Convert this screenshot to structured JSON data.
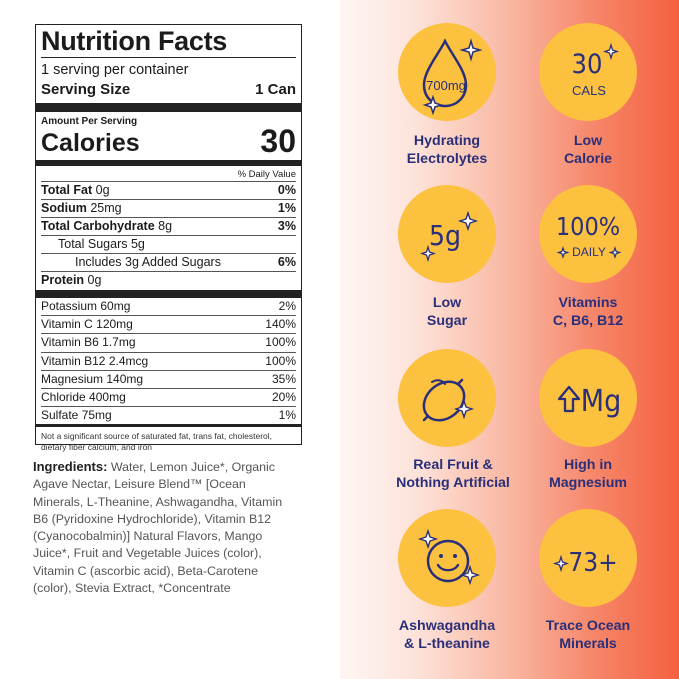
{
  "nutrition": {
    "title": "Nutrition Facts",
    "servings_per_container": "1 serving per container",
    "serving_size_label": "Serving Size",
    "serving_size_value": "1 Can",
    "amount_per_serving": "Amount Per Serving",
    "calories_label": "Calories",
    "calories_value": "30",
    "dv_header": "% Daily Value",
    "rows": [
      {
        "name": "Total Fat",
        "amount": "0g",
        "dv": "0%"
      },
      {
        "name": "Sodium",
        "amount": "25mg",
        "dv": "1%"
      },
      {
        "name": "Total Carbohydrate",
        "amount": "8g",
        "dv": "3%"
      },
      {
        "name": "Total Sugars",
        "amount": "5g",
        "dv": ""
      },
      {
        "name": "Includes 3g Added Sugars",
        "amount": "",
        "dv": "6%"
      },
      {
        "name": "Protein",
        "amount": "0g",
        "dv": ""
      }
    ],
    "vitamins": [
      {
        "name": "Potassium",
        "amount": "60mg",
        "dv": "2%"
      },
      {
        "name": "Vitamin C",
        "amount": "120mg",
        "dv": "140%"
      },
      {
        "name": "Vitamin B6",
        "amount": "1.7mg",
        "dv": "100%"
      },
      {
        "name": "Vitamin B12",
        "amount": "2.4mcg",
        "dv": "100%"
      },
      {
        "name": "Magnesium",
        "amount": "140mg",
        "dv": "35%"
      },
      {
        "name": "Chloride",
        "amount": "400mg",
        "dv": "20%"
      },
      {
        "name": "Sulfate",
        "amount": "75mg",
        "dv": "1%"
      }
    ],
    "footnote": "Not a significant source of saturated fat, trans fat, cholesterol, dietary fiber calcium, and iron"
  },
  "ingredients": {
    "label": "Ingredients:",
    "text": "Water, Lemon Juice*, Organic Agave Nectar, Leisure Blend™ [Ocean Minerals, L-Theanine, Ashwagandha, Vitamin B6 (Pyridoxine Hydrochloride), Vitamin B12 (Cyanocobalmin)] Natural Flavors, Mango Juice*, Fruit and Vegetable Juices (color), Vitamin C (ascorbic acid), Beta-Carotene (color), Stevia Extract, *Concentrate"
  },
  "badges": [
    {
      "icon": "water-drop-icon",
      "icon_text": "700mg",
      "label_line1": "Hydrating",
      "label_line2": "Electrolytes"
    },
    {
      "icon": "calories-icon",
      "icon_text": "30",
      "icon_subtext": "CALS",
      "label_line1": "Low",
      "label_line2": "Calorie"
    },
    {
      "icon": "sugar-icon",
      "icon_text": "5g",
      "label_line1": "Low",
      "label_line2": "Sugar"
    },
    {
      "icon": "daily-value-icon",
      "icon_text": "100%",
      "icon_subtext": "DAILY",
      "label_line1": "Vitamins",
      "label_line2": "C, B6, B12"
    },
    {
      "icon": "lemon-icon",
      "label_line1": "Real Fruit &",
      "label_line2": "Nothing Artificial"
    },
    {
      "icon": "magnesium-icon",
      "icon_text": "Mg",
      "label_line1": "High in",
      "label_line2": "Magnesium"
    },
    {
      "icon": "smiley-icon",
      "label_line1": "Ashwagandha",
      "label_line2": "& L-theanine"
    },
    {
      "icon": "trace-minerals-icon",
      "icon_text": "73+",
      "label_line1": "Trace Ocean",
      "label_line2": "Minerals"
    }
  ],
  "colors": {
    "badge_fill": "#fbc13f",
    "badge_label": "#2a2f7a",
    "icon_stroke": "#2a2f7a",
    "gradient_end": "#f4613f"
  }
}
